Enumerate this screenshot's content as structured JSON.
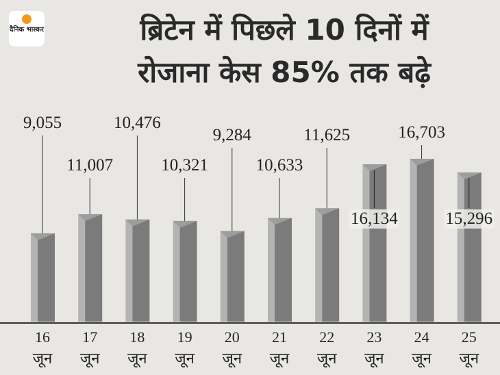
{
  "chart_data": {
    "type": "bar",
    "logo": "दैनिक भास्कर",
    "title": [
      "ब्रिटेन में पिछले 10 दिनों में",
      "रोजाना केस 85% तक बढ़े"
    ],
    "categories": [
      "16 जून",
      "17 जून",
      "18 जून",
      "19 जून",
      "20 जून",
      "21 जून",
      "22 जून",
      "23 जून",
      "24 जून",
      "25 जून"
    ],
    "values": [
      9055,
      11007,
      10476,
      10321,
      9284,
      10633,
      11625,
      16134,
      16703,
      15296
    ],
    "value_labels": [
      "9,055",
      "11,007",
      "10,476",
      "10,321",
      "9,284",
      "10,633",
      "11,625",
      "16,134",
      "16,703",
      "15,296"
    ],
    "color": "#7b7b7b"
  }
}
